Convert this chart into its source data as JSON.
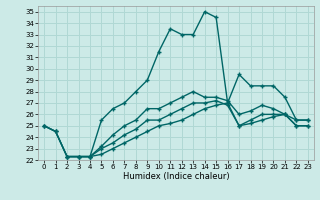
{
  "xlabel": "Humidex (Indice chaleur)",
  "bg_color": "#cceae7",
  "grid_color": "#b0d8d4",
  "line_color": "#006666",
  "xlim": [
    -0.5,
    23.5
  ],
  "ylim": [
    22,
    35.5
  ],
  "xticks": [
    0,
    1,
    2,
    3,
    4,
    5,
    6,
    7,
    8,
    9,
    10,
    11,
    12,
    13,
    14,
    15,
    16,
    17,
    18,
    19,
    20,
    21,
    22,
    23
  ],
  "yticks": [
    22,
    23,
    24,
    25,
    26,
    27,
    28,
    29,
    30,
    31,
    32,
    33,
    34,
    35
  ],
  "line1_x": [
    0,
    1,
    2,
    3,
    4,
    5,
    6,
    7,
    8,
    9,
    10,
    11,
    12,
    13,
    14,
    15,
    16,
    17,
    18,
    19,
    20,
    21,
    22,
    23
  ],
  "line1_y": [
    25.0,
    24.5,
    22.3,
    22.3,
    22.3,
    25.5,
    26.5,
    27.0,
    28.0,
    29.0,
    31.5,
    33.5,
    33.0,
    33.0,
    35.0,
    34.5,
    27.0,
    29.5,
    28.5,
    28.5,
    28.5,
    27.5,
    25.5,
    25.5
  ],
  "line2_x": [
    0,
    1,
    2,
    3,
    4,
    5,
    6,
    7,
    8,
    9,
    10,
    11,
    12,
    13,
    14,
    15,
    16,
    17,
    18,
    19,
    20,
    21,
    22,
    23
  ],
  "line2_y": [
    25.0,
    24.5,
    22.3,
    22.3,
    22.3,
    23.2,
    24.2,
    25.0,
    25.5,
    26.5,
    26.5,
    27.0,
    27.5,
    28.0,
    27.5,
    27.5,
    27.2,
    26.0,
    26.3,
    26.8,
    26.5,
    26.0,
    25.5,
    25.5
  ],
  "line3_x": [
    0,
    1,
    2,
    3,
    4,
    5,
    6,
    7,
    8,
    9,
    10,
    11,
    12,
    13,
    14,
    15,
    16,
    17,
    18,
    19,
    20,
    21,
    22,
    23
  ],
  "line3_y": [
    25.0,
    24.5,
    22.3,
    22.3,
    22.3,
    23.0,
    23.5,
    24.2,
    24.7,
    25.5,
    25.5,
    26.0,
    26.5,
    27.0,
    27.0,
    27.2,
    26.8,
    25.0,
    25.5,
    26.0,
    26.0,
    26.0,
    25.0,
    25.0
  ],
  "line4_x": [
    2,
    3,
    4,
    5,
    6,
    7,
    8,
    9,
    10,
    11,
    12,
    13,
    14,
    15,
    16,
    17,
    18,
    19,
    20,
    21,
    22,
    23
  ],
  "line4_y": [
    22.3,
    22.3,
    22.3,
    22.5,
    23.0,
    23.5,
    24.0,
    24.5,
    25.0,
    25.2,
    25.5,
    26.0,
    26.5,
    26.8,
    27.0,
    25.0,
    25.2,
    25.5,
    25.8,
    26.0,
    25.0,
    25.0
  ]
}
